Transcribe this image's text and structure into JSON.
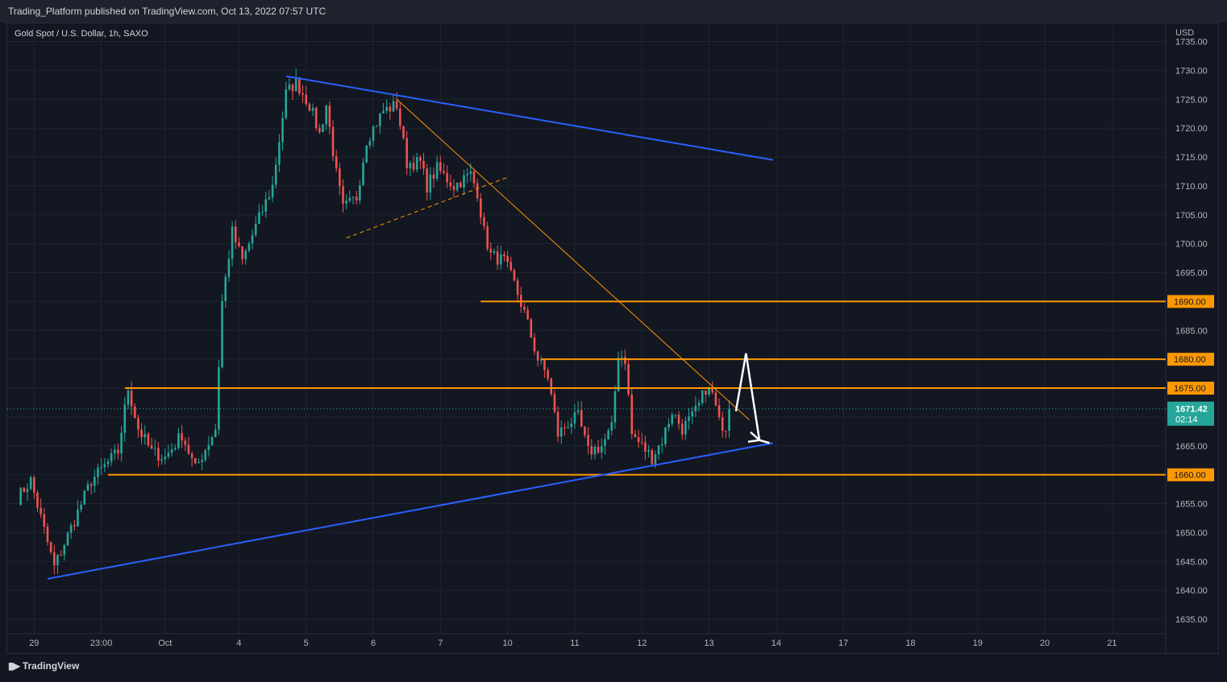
{
  "header": {
    "published": "Trading_Platform published on TradingView.com, Oct 13, 2022 07:57 UTC"
  },
  "symbol_line": "Gold Spot / U.S. Dollar, 1h, SAXO",
  "footer": {
    "brand": "TradingView",
    "logo_icon": "tradingview-logo-icon"
  },
  "colors": {
    "background": "#131722",
    "grid": "#1f2430",
    "up": "#26a69a",
    "down": "#ef5350",
    "trendline": "#2962ff",
    "level": "#ff9800",
    "arrow": "#ffffff",
    "axis_text": "#b2b5be"
  },
  "chart_data": {
    "type": "candlestick",
    "currency": "USD",
    "y_range": [
      1632.5,
      1738
    ],
    "y_ticks": [
      1635,
      1640,
      1645,
      1650,
      1655,
      1660,
      1665,
      1670,
      1675,
      1680,
      1685,
      1690,
      1695,
      1700,
      1705,
      1710,
      1715,
      1720,
      1725,
      1730,
      1735
    ],
    "x_tick_labels": [
      "29",
      "23:00",
      "Oct",
      "4",
      "5",
      "6",
      "7",
      "10",
      "11",
      "12",
      "13",
      "14",
      "17",
      "18",
      "19",
      "20",
      "21"
    ],
    "x_tick_index": [
      5,
      25,
      44,
      66,
      86,
      106,
      126,
      146,
      166,
      186,
      206,
      226,
      246,
      266,
      286,
      306,
      326
    ],
    "x_index_range": [
      -3,
      342
    ],
    "last_price": {
      "value": "1671.42",
      "countdown": "02:14"
    },
    "price_levels": [
      {
        "price": 1690,
        "label": "1690.00",
        "from_index": 138
      },
      {
        "price": 1680,
        "label": "1680.00",
        "from_index": 156
      },
      {
        "price": 1675,
        "label": "1675.00",
        "from_index": 32
      },
      {
        "price": 1660,
        "label": "1660.00",
        "from_index": 27
      }
    ],
    "trendlines": [
      {
        "name": "upper-trendline",
        "p1": [
          80,
          1729
        ],
        "p2": [
          225,
          1714.5
        ]
      },
      {
        "name": "lower-trendline",
        "p1": [
          9,
          1642
        ],
        "p2": [
          225,
          1665.5
        ]
      },
      {
        "name": "orange-descending-line",
        "p1": [
          113,
          1725
        ],
        "p2": [
          218,
          1669.5
        ]
      }
    ],
    "dashed_lines": [
      {
        "name": "orange-dashed-channel",
        "p1": [
          98,
          1701
        ],
        "p2": [
          146,
          1711.5
        ]
      }
    ],
    "projection_arrow": {
      "points": [
        [
          214,
          1671
        ],
        [
          217,
          1681
        ],
        [
          221,
          1666
        ],
        [
          224,
          1665.5
        ]
      ]
    },
    "key_points": [
      {
        "index": 0,
        "price": 1656
      },
      {
        "index": 4,
        "price": 1659
      },
      {
        "index": 11,
        "price": 1644
      },
      {
        "index": 22,
        "price": 1659
      },
      {
        "index": 30,
        "price": 1664
      },
      {
        "index": 33,
        "price": 1675
      },
      {
        "index": 36,
        "price": 1668
      },
      {
        "index": 40,
        "price": 1664
      },
      {
        "index": 44,
        "price": 1663
      },
      {
        "index": 49,
        "price": 1667
      },
      {
        "index": 53,
        "price": 1661
      },
      {
        "index": 59,
        "price": 1668
      },
      {
        "index": 61,
        "price": 1690
      },
      {
        "index": 64,
        "price": 1702
      },
      {
        "index": 67,
        "price": 1697
      },
      {
        "index": 71,
        "price": 1703
      },
      {
        "index": 76,
        "price": 1710
      },
      {
        "index": 80,
        "price": 1726
      },
      {
        "index": 83,
        "price": 1728
      },
      {
        "index": 87,
        "price": 1724
      },
      {
        "index": 90,
        "price": 1719
      },
      {
        "index": 92,
        "price": 1724
      },
      {
        "index": 95,
        "price": 1712
      },
      {
        "index": 97,
        "price": 1706
      },
      {
        "index": 101,
        "price": 1708
      },
      {
        "index": 104,
        "price": 1718
      },
      {
        "index": 109,
        "price": 1723
      },
      {
        "index": 113,
        "price": 1724
      },
      {
        "index": 116,
        "price": 1714
      },
      {
        "index": 120,
        "price": 1714
      },
      {
        "index": 122,
        "price": 1710
      },
      {
        "index": 125,
        "price": 1713
      },
      {
        "index": 130,
        "price": 1710
      },
      {
        "index": 135,
        "price": 1712
      },
      {
        "index": 137,
        "price": 1709
      },
      {
        "index": 139,
        "price": 1702
      },
      {
        "index": 141,
        "price": 1698
      },
      {
        "index": 145,
        "price": 1697
      },
      {
        "index": 148,
        "price": 1693
      },
      {
        "index": 151,
        "price": 1688
      },
      {
        "index": 155,
        "price": 1680
      },
      {
        "index": 158,
        "price": 1677
      },
      {
        "index": 161,
        "price": 1667
      },
      {
        "index": 164,
        "price": 1669
      },
      {
        "index": 167,
        "price": 1670
      },
      {
        "index": 170,
        "price": 1664
      },
      {
        "index": 174,
        "price": 1665
      },
      {
        "index": 177,
        "price": 1668
      },
      {
        "index": 179,
        "price": 1681
      },
      {
        "index": 181,
        "price": 1680
      },
      {
        "index": 183,
        "price": 1667
      },
      {
        "index": 186,
        "price": 1665
      },
      {
        "index": 189,
        "price": 1663
      },
      {
        "index": 192,
        "price": 1666
      },
      {
        "index": 195,
        "price": 1671
      },
      {
        "index": 198,
        "price": 1668
      },
      {
        "index": 201,
        "price": 1670
      },
      {
        "index": 203,
        "price": 1672
      },
      {
        "index": 205,
        "price": 1675
      },
      {
        "index": 207,
        "price": 1674
      },
      {
        "index": 209,
        "price": 1669
      },
      {
        "index": 211,
        "price": 1668.5
      },
      {
        "index": 212,
        "price": 1671.42
      }
    ]
  }
}
